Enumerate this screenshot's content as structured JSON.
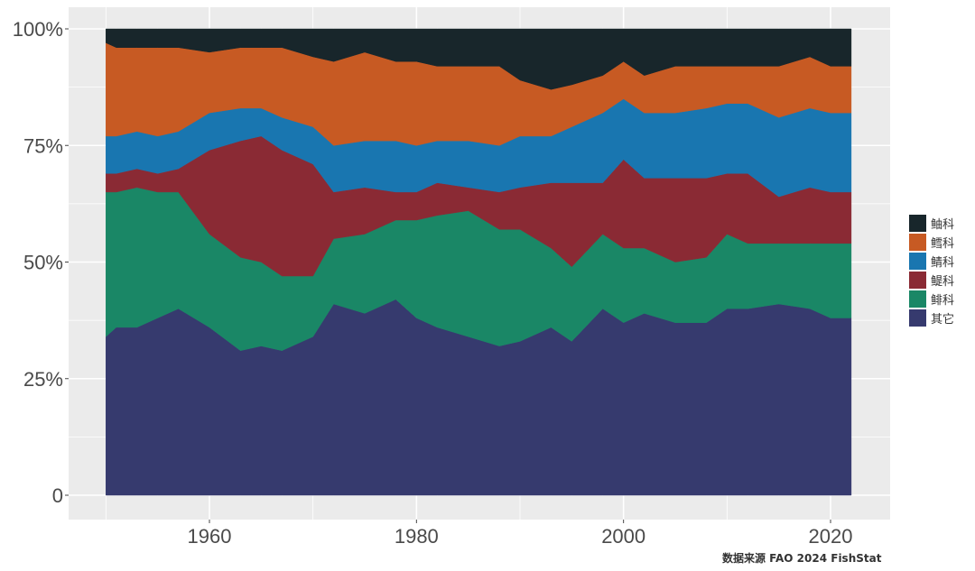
{
  "chart_data": {
    "type": "area",
    "stacking": "percent",
    "x": [
      1950,
      1951,
      1953,
      1955,
      1957,
      1960,
      1963,
      1965,
      1967,
      1970,
      1972,
      1975,
      1978,
      1980,
      1982,
      1985,
      1988,
      1990,
      1993,
      1995,
      1998,
      2000,
      2002,
      2005,
      2008,
      2010,
      2012,
      2015,
      2018,
      2020,
      2022
    ],
    "series": [
      {
        "name": "其它",
        "color": "#363a6e",
        "values": [
          34,
          36,
          36,
          38,
          40,
          36,
          31,
          32,
          31,
          34,
          41,
          39,
          42,
          38,
          36,
          34,
          32,
          33,
          36,
          33,
          40,
          37,
          39,
          37,
          37,
          40,
          40,
          41,
          40,
          38,
          38
        ]
      },
      {
        "name": "鲱科",
        "color": "#1a8766",
        "values": [
          31,
          29,
          30,
          27,
          25,
          20,
          20,
          18,
          16,
          13,
          14,
          17,
          17,
          21,
          24,
          27,
          25,
          24,
          17,
          16,
          16,
          16,
          14,
          13,
          14,
          16,
          14,
          13,
          14,
          16,
          16
        ]
      },
      {
        "name": "鳀科",
        "color": "#8a2a34",
        "values": [
          4,
          4,
          4,
          4,
          5,
          18,
          25,
          27,
          27,
          24,
          10,
          10,
          6,
          6,
          7,
          5,
          8,
          9,
          14,
          18,
          11,
          19,
          15,
          18,
          17,
          13,
          15,
          10,
          12,
          11,
          11
        ]
      },
      {
        "name": "鲭科",
        "color": "#1976b0",
        "values": [
          8,
          8,
          8,
          8,
          8,
          8,
          7,
          6,
          7,
          8,
          10,
          10,
          11,
          10,
          9,
          10,
          10,
          11,
          10,
          12,
          15,
          13,
          14,
          14,
          15,
          15,
          15,
          17,
          17,
          17,
          17
        ]
      },
      {
        "name": "鳕科",
        "color": "#c75a23",
        "values": [
          20,
          19,
          18,
          19,
          18,
          13,
          13,
          13,
          15,
          15,
          18,
          19,
          17,
          18,
          16,
          16,
          17,
          12,
          10,
          9,
          8,
          8,
          8,
          10,
          9,
          8,
          8,
          11,
          11,
          10,
          10
        ]
      },
      {
        "name": "鲉科",
        "color": "#18262b",
        "values": [
          3,
          4,
          4,
          4,
          4,
          5,
          4,
          4,
          4,
          6,
          7,
          5,
          7,
          7,
          8,
          8,
          8,
          11,
          13,
          12,
          10,
          7,
          10,
          8,
          8,
          8,
          8,
          8,
          6,
          8,
          8
        ]
      }
    ],
    "xlim": [
      1945,
      2026
    ],
    "ylim": [
      0,
      100
    ],
    "y_ticks": [
      {
        "value": 0,
        "label": "0"
      },
      {
        "value": 25,
        "label": "25%"
      },
      {
        "value": 50,
        "label": "50%"
      },
      {
        "value": 75,
        "label": "75%"
      },
      {
        "value": 100,
        "label": "100%"
      }
    ],
    "x_ticks": [
      {
        "value": 1960,
        "label": "1960"
      },
      {
        "value": 1980,
        "label": "1980"
      },
      {
        "value": 2000,
        "label": "2000"
      },
      {
        "value": 2020,
        "label": "2020"
      }
    ],
    "legend_order": [
      "鲉科",
      "鳕科",
      "鲭科",
      "鳀科",
      "鲱科",
      "其它"
    ],
    "legend_placement": "right",
    "grid": true,
    "panel_background": "#ebebeb",
    "source": "数据来源 FAO 2024 FishStat"
  }
}
